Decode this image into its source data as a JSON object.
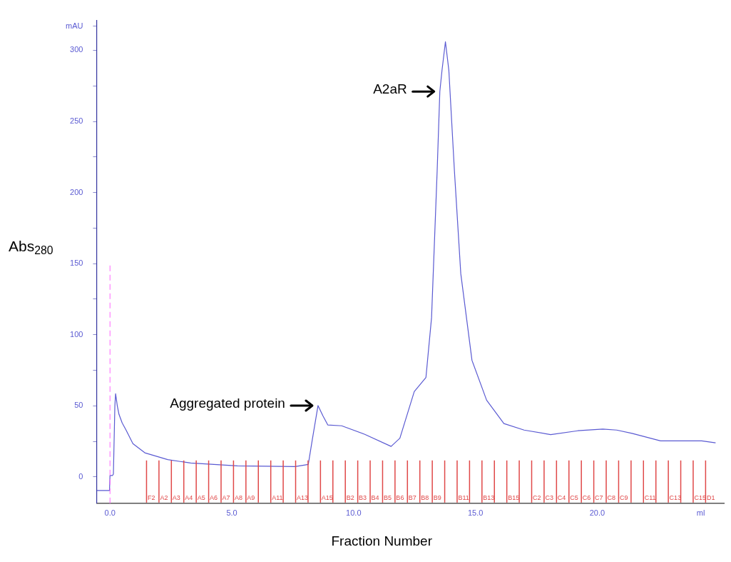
{
  "chart_data": {
    "type": "line",
    "xlabel": "Fraction Number",
    "ylabel": "Abs$_{280}$",
    "xlim": [
      -0.55,
      25.2
    ],
    "ylim": [
      -18.5,
      321
    ],
    "xticks": [
      {
        "value": 0,
        "label": "0.0"
      },
      {
        "value": 5,
        "label": "5.0"
      },
      {
        "value": 10,
        "label": "10.0"
      },
      {
        "value": 15,
        "label": "15.0"
      },
      {
        "value": 20,
        "label": "20.0"
      },
      {
        "value": 24.25,
        "label": "ml"
      }
    ],
    "yticks": [
      0,
      {
        "value": 25,
        "label": null
      },
      50,
      {
        "value": 75,
        "label": null
      },
      100,
      {
        "value": 125,
        "label": null
      },
      150,
      {
        "value": 175,
        "label": null
      },
      200,
      {
        "value": 225,
        "label": null
      },
      250,
      {
        "value": 275,
        "label": null
      },
      300,
      {
        "value": 317,
        "label": "mAU"
      }
    ],
    "grid": false,
    "legend": false,
    "marker": "none",
    "line_style": "solid",
    "series": [
      {
        "color": "#5a5ad2",
        "x": [
          -0.54,
          -0.02,
          0,
          0.1,
          0.14,
          0.2,
          0.23,
          0.3,
          0.37,
          0.5,
          0.66,
          0.94,
          1.43,
          2.37,
          3.31,
          5.23,
          7.6,
          8.14,
          8.31,
          8.54,
          8.74,
          8.94,
          9.51,
          10.46,
          11.54,
          11.9,
          12.49,
          12.97,
          13.2,
          13.43,
          13.54,
          13.63,
          13.77,
          13.91,
          14.14,
          14.4,
          14.86,
          15.46,
          16.17,
          17,
          18.09,
          19.2,
          20.23,
          20.8,
          21.43,
          22.6,
          24.29,
          24.86
        ],
        "values": [
          -9.5,
          -9.5,
          1,
          1,
          2,
          50,
          58.5,
          50,
          44,
          38,
          33,
          23.4,
          17,
          12.2,
          9.8,
          7.8,
          7.3,
          8.8,
          26.8,
          50.2,
          43,
          36.6,
          36,
          30,
          21.5,
          27.3,
          60,
          70,
          112,
          215,
          271,
          286,
          306,
          286,
          215,
          143,
          82,
          54,
          37.6,
          33,
          29.8,
          32.5,
          33.7,
          33,
          30.7,
          25.4,
          25.4,
          24
        ]
      }
    ],
    "ref_lines": [
      {
        "axis": "x",
        "value": 0,
        "color": "#ff66ff",
        "line_style": "dashed"
      },
      {
        "axis": "x",
        "value": 1.5,
        "label": "F2",
        "color": "#e04848",
        "line_style": "solid"
      },
      {
        "axis": "x",
        "value": 2.01,
        "label": "A2",
        "color": "#e04848",
        "line_style": "solid"
      },
      {
        "axis": "x",
        "value": 2.52,
        "label": "A3",
        "color": "#e04848",
        "line_style": "solid"
      },
      {
        "axis": "x",
        "value": 3.03,
        "label": "A4",
        "color": "#e04848",
        "line_style": "solid"
      },
      {
        "axis": "x",
        "value": 3.54,
        "label": "A5",
        "color": "#e04848",
        "line_style": "solid"
      },
      {
        "axis": "x",
        "value": 4.05,
        "label": "A6",
        "color": "#e04848",
        "line_style": "solid"
      },
      {
        "axis": "x",
        "value": 4.56,
        "label": "A7",
        "color": "#e04848",
        "line_style": "solid"
      },
      {
        "axis": "x",
        "value": 5.07,
        "label": "A8",
        "color": "#e04848",
        "line_style": "solid"
      },
      {
        "axis": "x",
        "value": 5.58,
        "label": "A9",
        "color": "#e04848",
        "line_style": "solid"
      },
      {
        "axis": "x",
        "value": 6.09,
        "color": "#e04848",
        "line_style": "solid"
      },
      {
        "axis": "x",
        "value": 6.6,
        "label": "A11",
        "color": "#e04848",
        "line_style": "solid"
      },
      {
        "axis": "x",
        "value": 7.11,
        "color": "#e04848",
        "line_style": "solid"
      },
      {
        "axis": "x",
        "value": 7.62,
        "label": "A13",
        "color": "#e04848",
        "line_style": "solid"
      },
      {
        "axis": "x",
        "value": 8.13,
        "color": "#e04848",
        "line_style": "solid"
      },
      {
        "axis": "x",
        "value": 8.64,
        "label": "A15",
        "color": "#e04848",
        "line_style": "solid"
      },
      {
        "axis": "x",
        "value": 9.15,
        "color": "#e04848",
        "line_style": "solid"
      },
      {
        "axis": "x",
        "value": 9.66,
        "label": "B2",
        "color": "#e04848",
        "line_style": "solid"
      },
      {
        "axis": "x",
        "value": 10.17,
        "label": "B3",
        "color": "#e04848",
        "line_style": "solid"
      },
      {
        "axis": "x",
        "value": 10.68,
        "label": "B4",
        "color": "#e04848",
        "line_style": "solid"
      },
      {
        "axis": "x",
        "value": 11.19,
        "label": "B5",
        "color": "#e04848",
        "line_style": "solid"
      },
      {
        "axis": "x",
        "value": 11.7,
        "label": "B6",
        "color": "#e04848",
        "line_style": "solid"
      },
      {
        "axis": "x",
        "value": 12.21,
        "label": "B7",
        "color": "#e04848",
        "line_style": "solid"
      },
      {
        "axis": "x",
        "value": 12.72,
        "label": "B8",
        "color": "#e04848",
        "line_style": "solid"
      },
      {
        "axis": "x",
        "value": 13.23,
        "label": "B9",
        "color": "#e04848",
        "line_style": "solid"
      },
      {
        "axis": "x",
        "value": 13.74,
        "color": "#e04848",
        "line_style": "solid"
      },
      {
        "axis": "x",
        "value": 14.25,
        "label": "B11",
        "color": "#e04848",
        "line_style": "solid"
      },
      {
        "axis": "x",
        "value": 14.76,
        "color": "#e04848",
        "line_style": "solid"
      },
      {
        "axis": "x",
        "value": 15.27,
        "label": "B13",
        "color": "#e04848",
        "line_style": "solid"
      },
      {
        "axis": "x",
        "value": 15.78,
        "color": "#e04848",
        "line_style": "solid"
      },
      {
        "axis": "x",
        "value": 16.29,
        "label": "B15",
        "color": "#e04848",
        "line_style": "solid"
      },
      {
        "axis": "x",
        "value": 16.8,
        "color": "#e04848",
        "line_style": "solid"
      },
      {
        "axis": "x",
        "value": 17.31,
        "label": "C2",
        "color": "#e04848",
        "line_style": "solid"
      },
      {
        "axis": "x",
        "value": 17.82,
        "label": "C3",
        "color": "#e04848",
        "line_style": "solid"
      },
      {
        "axis": "x",
        "value": 18.33,
        "label": "C4",
        "color": "#e04848",
        "line_style": "solid"
      },
      {
        "axis": "x",
        "value": 18.84,
        "label": "C5",
        "color": "#e04848",
        "line_style": "solid"
      },
      {
        "axis": "x",
        "value": 19.35,
        "label": "C6",
        "color": "#e04848",
        "line_style": "solid"
      },
      {
        "axis": "x",
        "value": 19.86,
        "label": "C7",
        "color": "#e04848",
        "line_style": "solid"
      },
      {
        "axis": "x",
        "value": 20.37,
        "label": "C8",
        "color": "#e04848",
        "line_style": "solid"
      },
      {
        "axis": "x",
        "value": 20.88,
        "label": "C9",
        "color": "#e04848",
        "line_style": "solid"
      },
      {
        "axis": "x",
        "value": 21.39,
        "color": "#e04848",
        "line_style": "solid"
      },
      {
        "axis": "x",
        "value": 21.9,
        "label": "C11",
        "color": "#e04848",
        "line_style": "solid"
      },
      {
        "axis": "x",
        "value": 22.41,
        "color": "#e04848",
        "line_style": "solid"
      },
      {
        "axis": "x",
        "value": 22.92,
        "label": "C13",
        "color": "#e04848",
        "line_style": "solid"
      },
      {
        "axis": "x",
        "value": 23.43,
        "color": "#e04848",
        "line_style": "solid"
      },
      {
        "axis": "x",
        "value": 23.94,
        "label": "C15",
        "color": "#e04848",
        "line_style": "solid"
      },
      {
        "axis": "x",
        "value": 24.45,
        "label": "D1",
        "color": "#e04848",
        "line_style": "solid"
      }
    ],
    "annotations": [
      {
        "text": "Aggregated protein",
        "x": 8.54,
        "y": 50.2
      },
      {
        "text": "A2aR",
        "x": 13.54,
        "y": 271
      }
    ]
  }
}
